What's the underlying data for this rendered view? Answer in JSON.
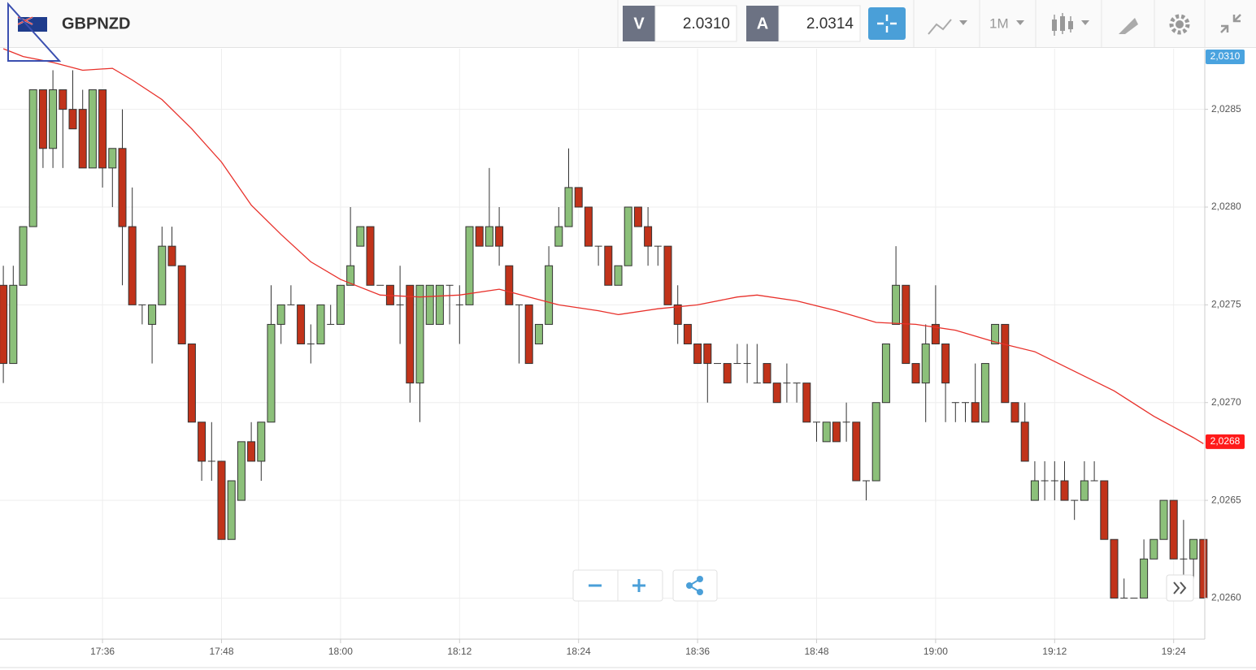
{
  "header": {
    "symbol": "GBPNZD",
    "bid_label": "V",
    "bid": "2.0310",
    "ask_label": "A",
    "ask": "2.0314",
    "timeframe": "1M"
  },
  "chart_data": {
    "type": "candlestick",
    "categories": [
      null,
      null,
      null,
      null,
      null,
      null,
      null,
      null,
      null,
      null,
      "17:36",
      null,
      null,
      null,
      null,
      null,
      null,
      null,
      null,
      null,
      null,
      null,
      "17:48",
      null,
      null,
      null,
      null,
      null,
      null,
      null,
      null,
      null,
      null,
      null,
      "18:00",
      null,
      null,
      null,
      null,
      null,
      null,
      null,
      null,
      null,
      null,
      null,
      "18:12",
      null,
      null,
      null,
      null,
      null,
      null,
      null,
      null,
      null,
      null,
      null,
      "18:24",
      null,
      null,
      null,
      null,
      null,
      null,
      null,
      null,
      null,
      null,
      null,
      "18:36",
      null,
      null,
      null,
      null,
      null,
      null,
      null,
      null,
      null,
      null,
      null,
      "18:48",
      null,
      null,
      null,
      null,
      null,
      null,
      null,
      null,
      null,
      null,
      null,
      "19:00",
      null,
      null,
      null,
      null,
      null,
      null,
      null,
      null,
      null,
      null,
      null,
      "19:12",
      null,
      null,
      null,
      null,
      null,
      null,
      null,
      null,
      null,
      null,
      null,
      "19:24",
      null,
      null,
      null
    ],
    "open": [
      2.0276,
      2.0272,
      2.0276,
      2.0279,
      2.0286,
      2.0283,
      2.0286,
      2.0285,
      2.0285,
      2.0282,
      2.0286,
      2.0282,
      2.0283,
      2.0279,
      2.0275,
      2.0274,
      2.0275,
      2.0278,
      2.0277,
      2.0273,
      2.0269,
      2.0267,
      2.0267,
      2.0263,
      2.0265,
      2.0268,
      2.0267,
      2.0269,
      2.0274,
      2.0275,
      2.0275,
      2.0273,
      2.0273,
      2.0274,
      2.0274,
      2.0276,
      2.0278,
      2.0279,
      2.0276,
      2.0276,
      2.0275,
      2.0276,
      2.0271,
      2.0274,
      2.0274,
      2.0276,
      2.0275,
      2.0275,
      2.0279,
      2.0278,
      2.0279,
      2.0277,
      2.0275,
      2.0275,
      2.0273,
      2.0274,
      2.0278,
      2.0279,
      2.0281,
      2.028,
      2.0278,
      2.0278,
      2.0276,
      2.0277,
      2.028,
      2.0279,
      2.0278,
      2.0278,
      2.0275,
      2.0274,
      2.0273,
      2.0273,
      2.0272,
      2.0272,
      2.0272,
      2.0272,
      2.0271,
      2.0272,
      2.0271,
      2.0271,
      2.0271,
      2.0271,
      2.0269,
      2.0268,
      2.0269,
      2.0269,
      2.0269,
      2.0266,
      2.0266,
      2.027,
      2.0274,
      2.0276,
      2.0272,
      2.0271,
      2.0274,
      2.0273,
      2.027,
      2.027,
      2.027,
      2.0269,
      2.0273,
      2.0274,
      2.027,
      2.0269,
      2.0265,
      2.0266,
      2.0266,
      2.0266,
      2.0265,
      2.0265,
      2.0266,
      2.0266,
      2.0263,
      2.026,
      2.026,
      2.026,
      2.0262,
      2.0263,
      2.0265,
      2.0262,
      2.0262,
      2.0263
    ],
    "high": [
      2.0277,
      2.0277,
      2.0279,
      2.0286,
      2.0286,
      2.0287,
      2.0286,
      2.0287,
      2.0286,
      2.0286,
      2.0286,
      2.0283,
      2.0285,
      2.0281,
      2.0275,
      2.0275,
      2.0279,
      2.0279,
      2.0277,
      2.0273,
      2.0269,
      2.0269,
      2.0267,
      2.0266,
      2.0268,
      2.0269,
      2.0269,
      2.0276,
      2.0275,
      2.0276,
      2.0275,
      2.0274,
      2.0275,
      2.0275,
      2.0276,
      2.028,
      2.0279,
      2.0279,
      2.0276,
      2.0276,
      2.0277,
      2.0276,
      2.0276,
      2.0276,
      2.0276,
      2.0276,
      2.0276,
      2.0279,
      2.0279,
      2.0282,
      2.028,
      2.0277,
      2.0275,
      2.0275,
      2.0274,
      2.0278,
      2.028,
      2.0283,
      2.0281,
      2.028,
      2.0278,
      2.0278,
      2.0277,
      2.028,
      2.028,
      2.028,
      2.0278,
      2.0278,
      2.0276,
      2.0274,
      2.0273,
      2.0273,
      2.0272,
      2.0272,
      2.0273,
      2.0273,
      2.0273,
      2.0272,
      2.0271,
      2.0272,
      2.0271,
      2.0271,
      2.0269,
      2.0269,
      2.0269,
      2.027,
      2.0269,
      2.0266,
      2.027,
      2.0273,
      2.0278,
      2.0276,
      2.0272,
      2.0274,
      2.0276,
      2.0273,
      2.027,
      2.027,
      2.0272,
      2.0272,
      2.0274,
      2.0274,
      2.027,
      2.027,
      2.0267,
      2.0267,
      2.0267,
      2.0267,
      2.0265,
      2.0267,
      2.0267,
      2.0266,
      2.0263,
      2.0261,
      2.026,
      2.0263,
      2.0263,
      2.0265,
      2.0265,
      2.0264,
      2.0263,
      2.0263
    ],
    "low": [
      2.0271,
      2.0272,
      2.0276,
      2.0279,
      2.0282,
      2.0282,
      2.0282,
      2.0284,
      2.0282,
      2.0282,
      2.0281,
      2.028,
      2.0276,
      2.0275,
      2.0274,
      2.0272,
      2.0275,
      2.0277,
      2.0273,
      2.0269,
      2.0266,
      2.0266,
      2.0263,
      2.0263,
      2.0265,
      2.0267,
      2.0266,
      2.0269,
      2.0273,
      2.0275,
      2.0273,
      2.0272,
      2.0273,
      2.0274,
      2.0274,
      2.0276,
      2.0278,
      2.0276,
      2.0276,
      2.0275,
      2.0273,
      2.027,
      2.0269,
      2.0274,
      2.0274,
      2.0274,
      2.0273,
      2.0275,
      2.0278,
      2.0278,
      2.0277,
      2.0275,
      2.0272,
      2.0272,
      2.0273,
      2.0274,
      2.0278,
      2.0279,
      2.028,
      2.0278,
      2.0277,
      2.0276,
      2.0276,
      2.0277,
      2.0279,
      2.0277,
      2.0277,
      2.0275,
      2.0273,
      2.0273,
      2.0272,
      2.027,
      2.0272,
      2.0271,
      2.0272,
      2.0271,
      2.0271,
      2.0271,
      2.027,
      2.027,
      2.027,
      2.0269,
      2.0268,
      2.0268,
      2.0268,
      2.0268,
      2.0266,
      2.0265,
      2.0266,
      2.027,
      2.0274,
      2.0272,
      2.0271,
      2.0269,
      2.0273,
      2.0269,
      2.0269,
      2.0269,
      2.0269,
      2.0269,
      2.0273,
      2.027,
      2.0269,
      2.0267,
      2.0265,
      2.0265,
      2.0265,
      2.0265,
      2.0264,
      2.0265,
      2.0266,
      2.0263,
      2.026,
      2.026,
      2.026,
      2.026,
      2.0262,
      2.0263,
      2.0262,
      2.0261,
      2.0261,
      2.026
    ],
    "close": [
      2.0272,
      2.0276,
      2.0279,
      2.0286,
      2.0283,
      2.0286,
      2.0285,
      2.0284,
      2.0282,
      2.0286,
      2.0282,
      2.0283,
      2.0279,
      2.0275,
      2.0275,
      2.0275,
      2.0278,
      2.0277,
      2.0273,
      2.0269,
      2.0267,
      2.0267,
      2.0263,
      2.0266,
      2.0268,
      2.0267,
      2.0269,
      2.0274,
      2.0275,
      2.0275,
      2.0273,
      2.0273,
      2.0275,
      2.0274,
      2.0276,
      2.0277,
      2.0279,
      2.0276,
      2.0276,
      2.0275,
      2.0275,
      2.0271,
      2.0276,
      2.0276,
      2.0276,
      2.0276,
      2.0275,
      2.0279,
      2.0278,
      2.0279,
      2.0278,
      2.0275,
      2.0275,
      2.0272,
      2.0274,
      2.0277,
      2.0279,
      2.0281,
      2.028,
      2.0278,
      2.0278,
      2.0276,
      2.0277,
      2.028,
      2.0279,
      2.0278,
      2.0278,
      2.0275,
      2.0274,
      2.0273,
      2.0272,
      2.0272,
      2.0272,
      2.0271,
      2.0272,
      2.0272,
      2.0271,
      2.0271,
      2.027,
      2.0271,
      2.0271,
      2.0269,
      2.0269,
      2.0269,
      2.0268,
      2.0269,
      2.0266,
      2.0266,
      2.027,
      2.0273,
      2.0276,
      2.0272,
      2.0271,
      2.0273,
      2.0273,
      2.0271,
      2.027,
      2.027,
      2.0269,
      2.0272,
      2.0274,
      2.027,
      2.0269,
      2.0267,
      2.0266,
      2.0266,
      2.0266,
      2.0265,
      2.0265,
      2.0266,
      2.0266,
      2.0263,
      2.026,
      2.026,
      2.026,
      2.0262,
      2.0263,
      2.0265,
      2.0262,
      2.0262,
      2.0263,
      2.026
    ],
    "up_color": "#8cc07a",
    "down_color": "#c1331a",
    "ma": {
      "color": "#e8302a",
      "x": [
        0,
        2,
        5,
        8,
        11,
        13,
        16,
        19,
        22,
        25,
        28,
        31,
        34,
        38,
        42,
        46,
        50,
        53,
        56,
        60,
        62,
        66,
        70,
        74,
        76,
        80,
        84,
        88,
        92,
        96,
        100,
        104,
        108,
        112,
        116,
        120,
        121
      ],
      "values": [
        2.02881,
        2.02877,
        2.02874,
        2.0287,
        2.02871,
        2.02865,
        2.02855,
        2.0284,
        2.02823,
        2.02801,
        2.02786,
        2.02772,
        2.02763,
        2.02755,
        2.02754,
        2.02755,
        2.02758,
        2.02754,
        2.0275,
        2.02747,
        2.02745,
        2.02748,
        2.0275,
        2.02754,
        2.02755,
        2.02752,
        2.02747,
        2.02741,
        2.0274,
        2.02737,
        2.02731,
        2.02726,
        2.02716,
        2.02706,
        2.02693,
        2.02682,
        2.02679
      ]
    },
    "price_tags": [
      {
        "value": 2.031,
        "label": "2,0310",
        "color": "#4aa3df"
      },
      {
        "value": 2.0268,
        "label": "2,0268",
        "color": "#ff1a1a"
      }
    ],
    "ylim": [
      2.02579,
      2.02881
    ],
    "yticks": [
      {
        "value": 2.026,
        "label": "2,0260"
      },
      {
        "value": 2.0265,
        "label": "2,0265"
      },
      {
        "value": 2.027,
        "label": "2,0270"
      },
      {
        "value": 2.0275,
        "label": "2,0275"
      },
      {
        "value": 2.028,
        "label": "2,0280"
      },
      {
        "value": 2.0285,
        "label": "2,0285"
      }
    ],
    "grid": true
  }
}
